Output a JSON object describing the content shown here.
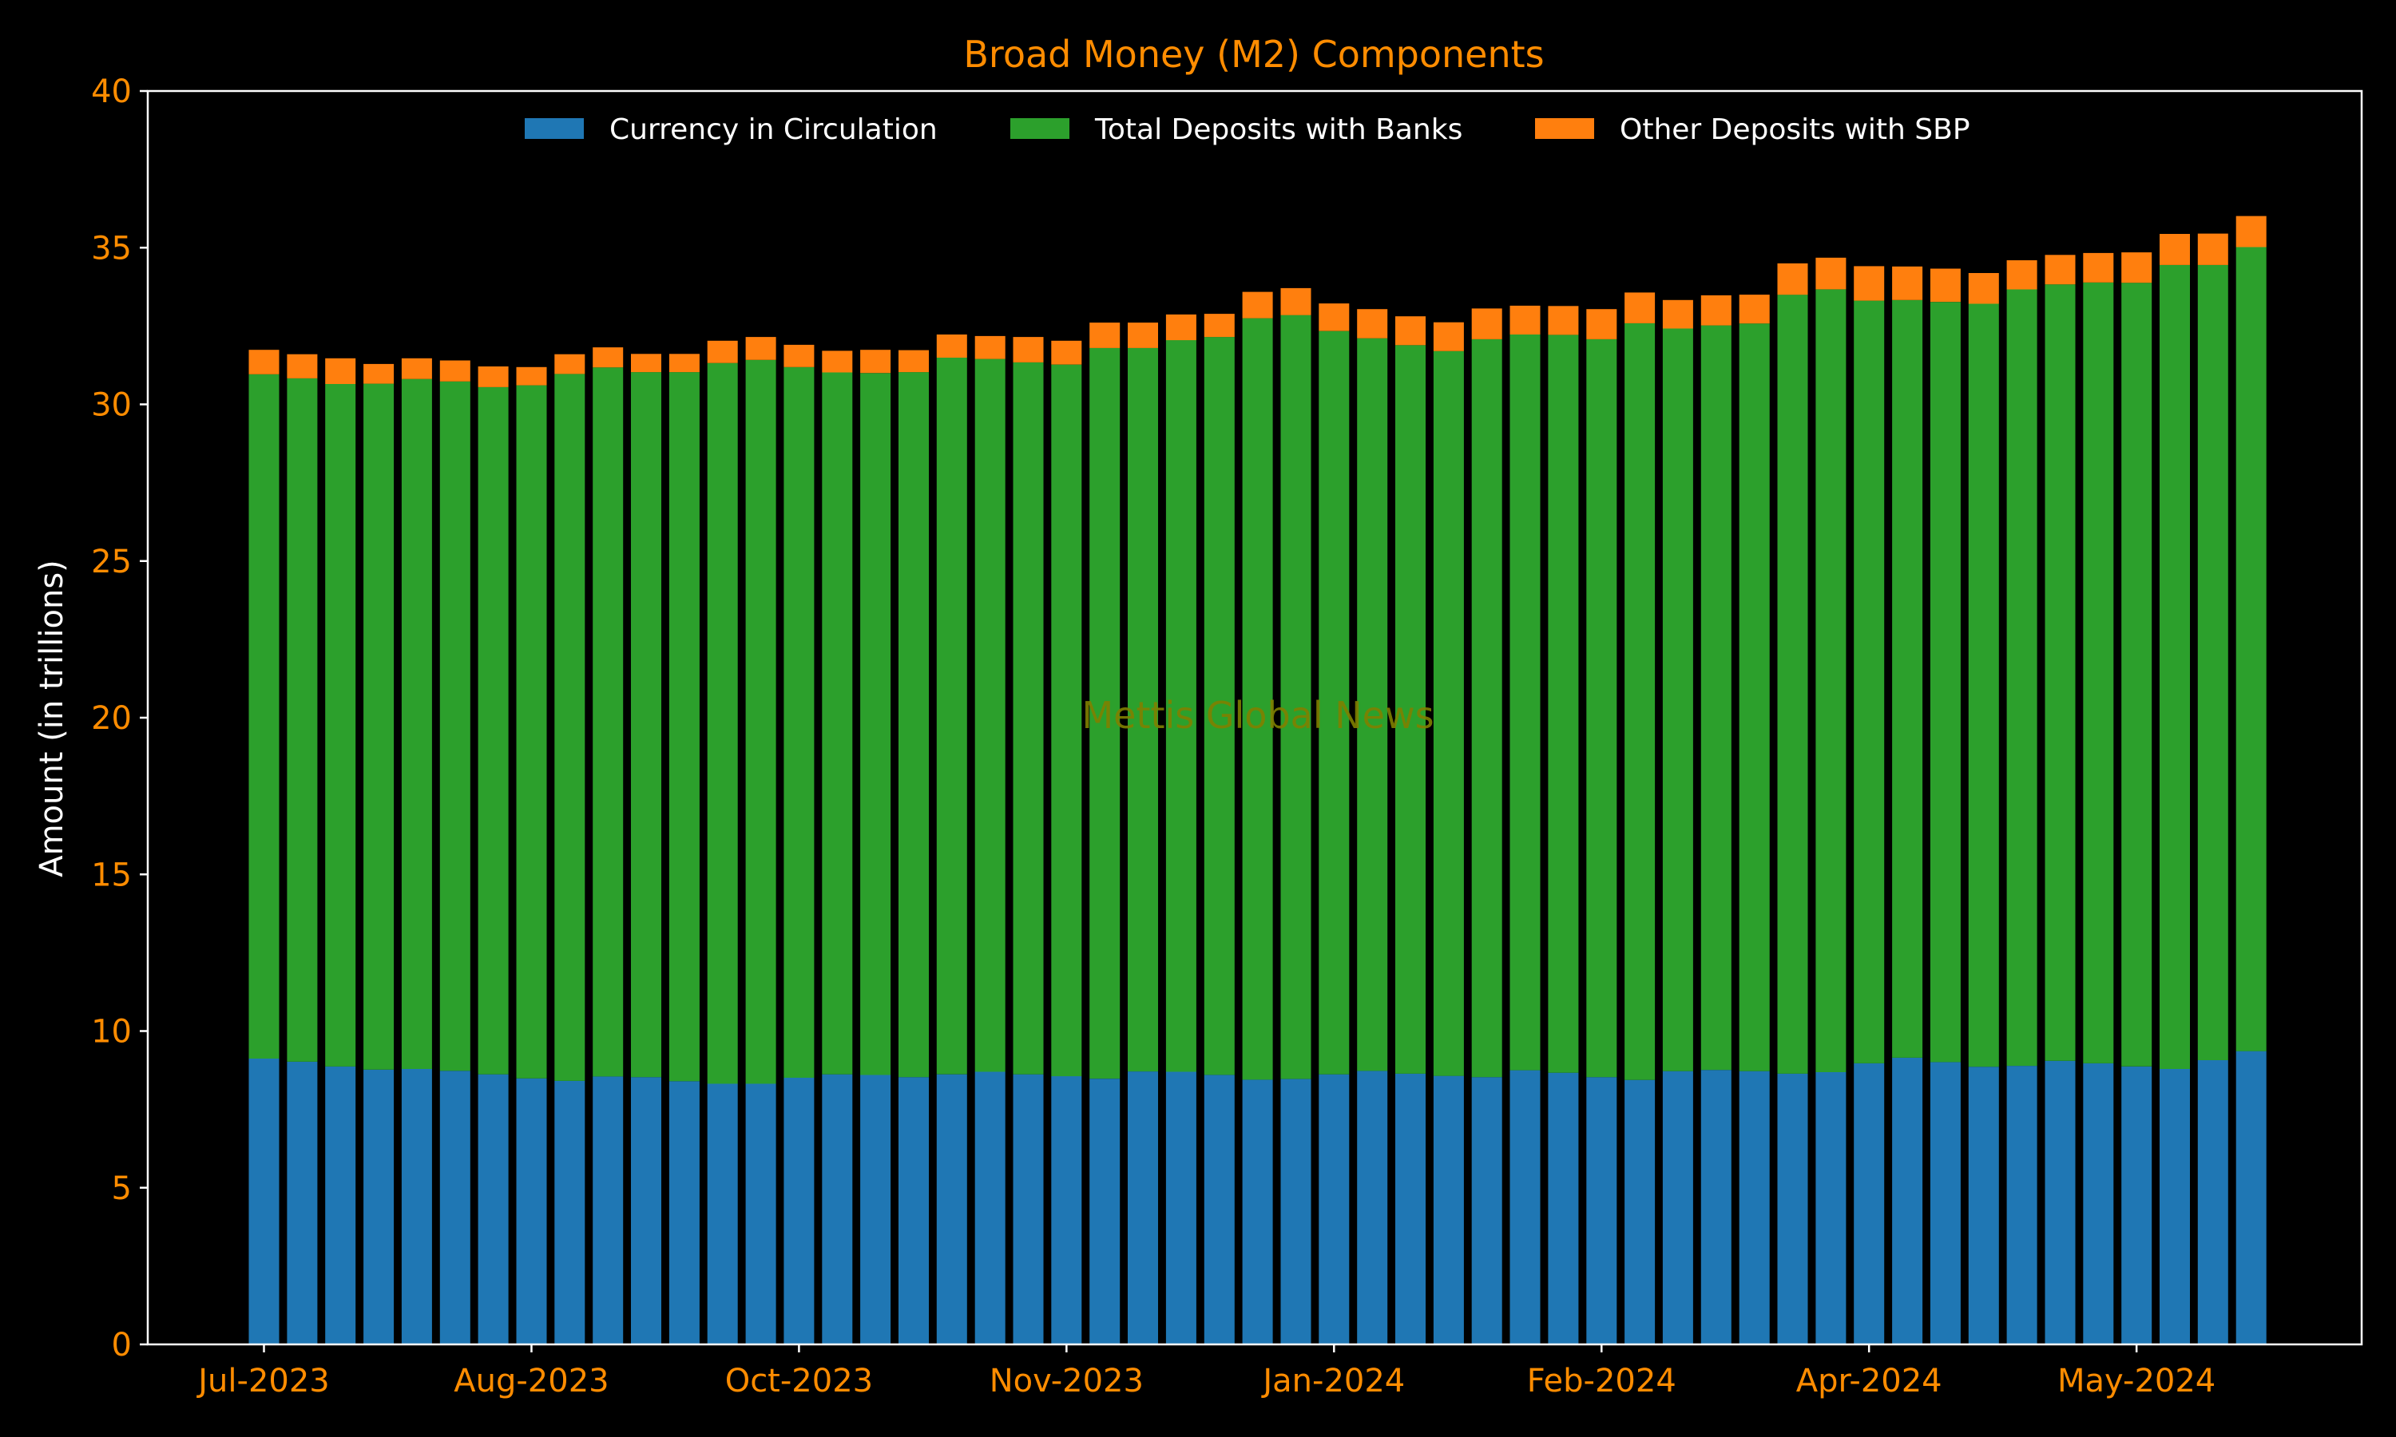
{
  "chart_data": {
    "type": "bar",
    "stacked": true,
    "title": "Broad Money (M2) Components",
    "xlabel": "",
    "ylabel": "Amount (in trillions)",
    "ylim": [
      0,
      40
    ],
    "yticks": [
      0,
      5,
      10,
      15,
      20,
      25,
      30,
      35,
      40
    ],
    "xtick_labels": [
      "Jul-2023",
      "Aug-2023",
      "Oct-2023",
      "Nov-2023",
      "Jan-2024",
      "Feb-2024",
      "Apr-2024",
      "May-2024"
    ],
    "xtick_bar_index": [
      0,
      7,
      14,
      21,
      28,
      35,
      42,
      49
    ],
    "watermark": "Mettis Global News",
    "grid": false,
    "legend_position": "upper-center",
    "colors": {
      "background": "#000000",
      "axes": "#ffffff",
      "tick_text": "#ff8c00",
      "title": "#ff8c00",
      "watermark": "#808000"
    },
    "series": [
      {
        "name": "Currency in Circulation",
        "color": "#1f77b4",
        "values": [
          9.12,
          9.02,
          8.87,
          8.77,
          8.79,
          8.73,
          8.62,
          8.49,
          8.41,
          8.55,
          8.53,
          8.4,
          8.32,
          8.32,
          8.51,
          8.62,
          8.6,
          8.53,
          8.62,
          8.7,
          8.62,
          8.56,
          8.48,
          8.71,
          8.7,
          8.6,
          8.45,
          8.47,
          8.62,
          8.73,
          8.64,
          8.57,
          8.53,
          8.75,
          8.67,
          8.53,
          8.44,
          8.72,
          8.76,
          8.72,
          8.64,
          8.69,
          8.97,
          9.15,
          9.01,
          8.86,
          8.89,
          9.05,
          8.97,
          8.87,
          8.79,
          9.07,
          9.36
        ]
      },
      {
        "name": "Total Deposits with Banks",
        "color": "#2ca02c",
        "values": [
          21.84,
          21.81,
          21.78,
          21.89,
          22.02,
          22.0,
          21.93,
          22.12,
          22.56,
          22.63,
          22.5,
          22.63,
          23.0,
          23.1,
          22.68,
          22.4,
          22.4,
          22.5,
          22.87,
          22.75,
          22.72,
          22.71,
          23.32,
          23.09,
          23.35,
          23.55,
          24.3,
          24.38,
          23.72,
          23.38,
          23.25,
          23.13,
          23.55,
          23.48,
          23.55,
          23.55,
          24.15,
          23.7,
          23.76,
          23.86,
          24.86,
          24.98,
          24.34,
          24.18,
          24.26,
          24.35,
          24.78,
          24.78,
          24.92,
          25.01,
          25.66,
          25.38,
          25.66
        ]
      },
      {
        "name": "Other Deposits with SBP",
        "color": "#ff7f0e",
        "values": [
          0.78,
          0.77,
          0.82,
          0.63,
          0.66,
          0.67,
          0.66,
          0.58,
          0.63,
          0.64,
          0.58,
          0.58,
          0.71,
          0.73,
          0.71,
          0.69,
          0.74,
          0.7,
          0.74,
          0.73,
          0.81,
          0.76,
          0.81,
          0.81,
          0.82,
          0.74,
          0.84,
          0.86,
          0.88,
          0.93,
          0.92,
          0.92,
          0.98,
          0.92,
          0.92,
          0.96,
          0.98,
          0.91,
          0.96,
          0.92,
          1.0,
          1.01,
          1.1,
          1.07,
          1.06,
          0.98,
          0.93,
          0.94,
          0.94,
          0.97,
          0.99,
          1.0,
          0.99
        ]
      }
    ]
  }
}
